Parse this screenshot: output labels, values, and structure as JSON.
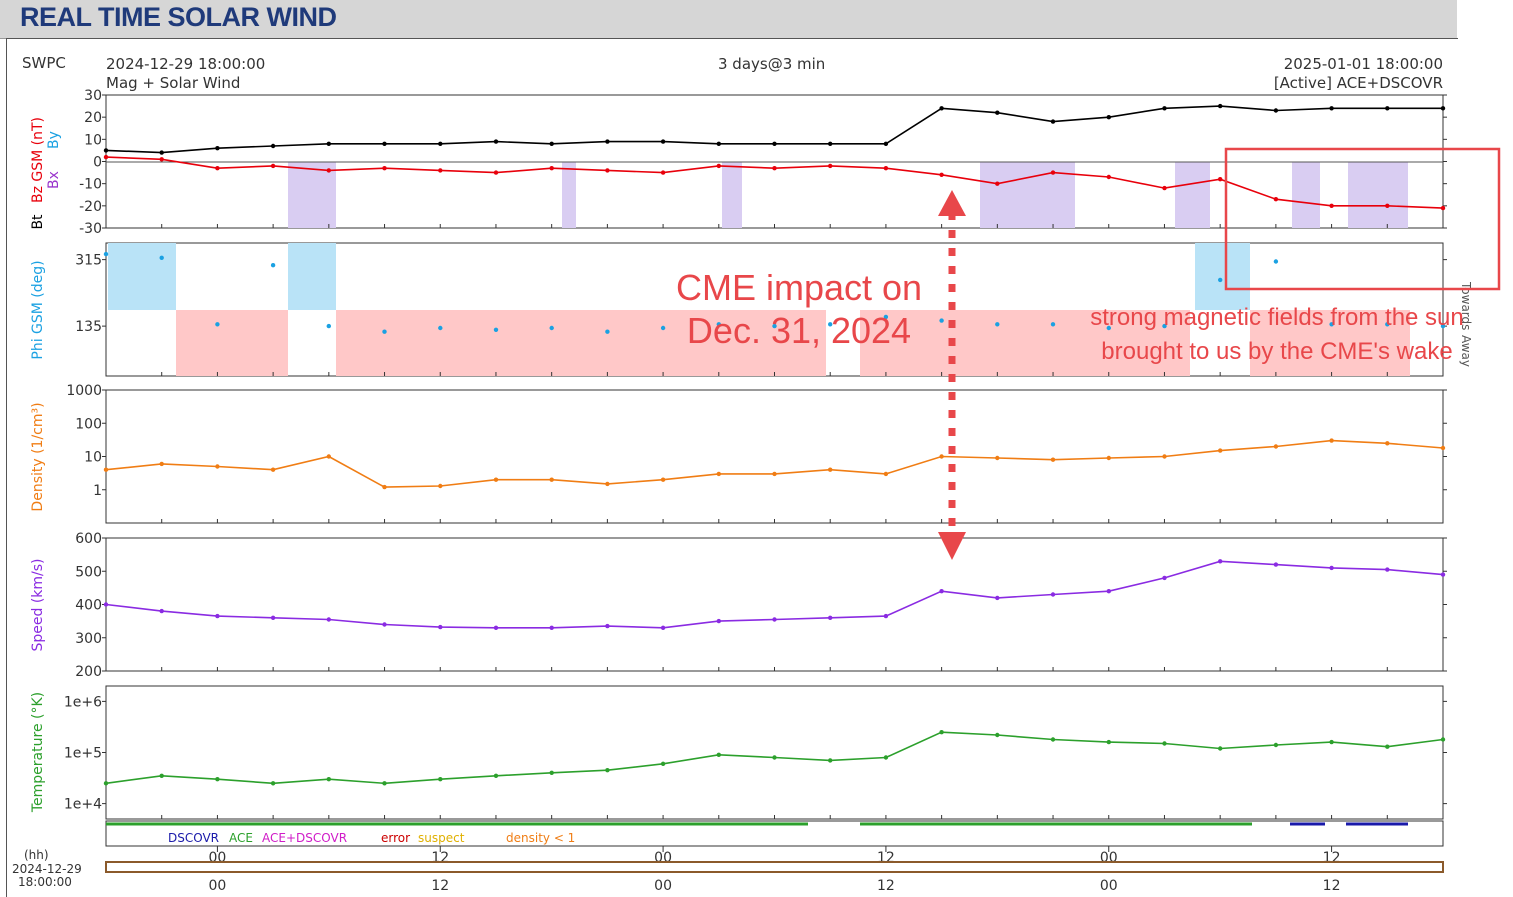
{
  "page": {
    "title": "REAL TIME SOLAR WIND"
  },
  "header": {
    "source": "SWPC",
    "start": "2024-12-29 18:00:00",
    "span": "3 days@3 min",
    "end": "2025-01-01 18:00:00",
    "product": "Mag + Solar Wind",
    "mode": "[Active] ACE+DSCOVR"
  },
  "legend": {
    "dscovr": "DSCOVR",
    "ace": "ACE",
    "ace_dscovr": "ACE+DSCOVR",
    "error": "error",
    "suspect": "suspect",
    "density": "density < 1"
  },
  "bottom": {
    "hh": "(hh)",
    "date": "2024-12-29",
    "time": "18:00:00"
  },
  "phi_side": {
    "away": "Away",
    "towards": "Towards"
  },
  "annotations": {
    "cme_line1": "CME impact on",
    "cme_line2": "Dec. 31, 2024",
    "field_line1": "strong magnetic fields from the sun",
    "field_line2": "brought to us by the CME's wake"
  },
  "colors": {
    "bt": "#000000",
    "bz": "#e8000b",
    "bx": "#9933cc",
    "by": "#1ba1e2",
    "phi": "#1ba1e2",
    "density": "#f07d14",
    "speed": "#8a2be2",
    "temperature": "#2ca02c",
    "annotation": "#e8474a",
    "away_shade": "#ffc8c8",
    "towards_shade": "#b9e3f7",
    "bz_neg_shade": "#d9cdf2"
  },
  "chart_data": [
    {
      "type": "line",
      "title": "",
      "ylabel": "Bz GSM (nT)",
      "ylabel_extra": [
        "Bt",
        "Bx",
        "By"
      ],
      "ylim": [
        -30,
        30
      ],
      "yticks": [
        "30",
        "20",
        "10",
        "0",
        "-10",
        "-20",
        "-30"
      ],
      "xlabel": "(hh)",
      "xticks": [
        "00",
        "12",
        "00",
        "12",
        "00",
        "12"
      ],
      "x_hours": [
        0,
        3,
        6,
        9,
        12,
        15,
        18,
        21,
        24,
        27,
        30,
        33,
        36,
        39,
        42,
        45,
        48,
        51,
        54,
        57,
        60,
        63,
        66,
        69,
        72
      ],
      "series": [
        {
          "name": "Bt",
          "values": [
            5,
            4,
            6,
            7,
            8,
            8,
            8,
            9,
            8,
            9,
            9,
            8,
            8,
            8,
            8,
            24,
            22,
            18,
            20,
            24,
            25,
            23,
            24,
            24,
            24
          ]
        },
        {
          "name": "Bz",
          "values": [
            2,
            1,
            -3,
            -2,
            -4,
            -3,
            -4,
            -5,
            -3,
            -4,
            -5,
            -2,
            -3,
            -2,
            -3,
            -6,
            -10,
            -5,
            -7,
            -12,
            -8,
            -17,
            -20,
            -20,
            -21
          ]
        }
      ]
    },
    {
      "type": "scatter",
      "title": "",
      "ylabel": "Phi GSM (deg)",
      "yticks": [
        "315",
        "135"
      ],
      "xticks": [
        "00",
        "12",
        "00",
        "12",
        "00",
        "12"
      ],
      "x_hours": [
        0,
        3,
        6,
        9,
        12,
        15,
        18,
        21,
        24,
        27,
        30,
        33,
        36,
        39,
        42,
        45,
        48,
        51,
        54,
        57,
        60,
        63,
        66,
        69,
        72
      ],
      "series": [
        {
          "name": "Phi",
          "values": [
            330,
            320,
            140,
            300,
            135,
            120,
            130,
            125,
            130,
            120,
            130,
            140,
            135,
            140,
            160,
            150,
            140,
            140,
            130,
            135,
            260,
            310,
            140,
            140,
            135
          ]
        }
      ]
    },
    {
      "type": "line",
      "title": "",
      "ylabel": "Density (1/cm³)",
      "yscale": "log",
      "ylim": [
        0.1,
        1000
      ],
      "yticks": [
        "1000",
        "100",
        "10",
        "1"
      ],
      "xticks": [
        "00",
        "12",
        "00",
        "12",
        "00",
        "12"
      ],
      "x_hours": [
        0,
        3,
        6,
        9,
        12,
        15,
        18,
        21,
        24,
        27,
        30,
        33,
        36,
        39,
        42,
        45,
        48,
        51,
        54,
        57,
        60,
        63,
        66,
        69,
        72
      ],
      "series": [
        {
          "name": "Density",
          "values": [
            4,
            6,
            5,
            4,
            10,
            1.2,
            1.3,
            2,
            2,
            1.5,
            2,
            3,
            3,
            4,
            3,
            10,
            9,
            8,
            9,
            10,
            15,
            20,
            30,
            25,
            18
          ]
        }
      ]
    },
    {
      "type": "line",
      "title": "",
      "ylabel": "Speed (km/s)",
      "ylim": [
        200,
        600
      ],
      "yticks": [
        "600",
        "500",
        "400",
        "300",
        "200"
      ],
      "xticks": [
        "00",
        "12",
        "00",
        "12",
        "00",
        "12"
      ],
      "x_hours": [
        0,
        3,
        6,
        9,
        12,
        15,
        18,
        21,
        24,
        27,
        30,
        33,
        36,
        39,
        42,
        45,
        48,
        51,
        54,
        57,
        60,
        63,
        66,
        69,
        72
      ],
      "series": [
        {
          "name": "Speed",
          "values": [
            400,
            380,
            365,
            360,
            355,
            340,
            332,
            330,
            330,
            335,
            330,
            350,
            355,
            360,
            365,
            440,
            420,
            430,
            440,
            480,
            530,
            520,
            510,
            505,
            490
          ]
        }
      ]
    },
    {
      "type": "line",
      "title": "",
      "ylabel": "Temperature (°K)",
      "yscale": "log",
      "ylim": [
        5000,
        2000000
      ],
      "yticks": [
        "1e+6",
        "1e+5",
        "1e+4"
      ],
      "xticks": [
        "00",
        "12",
        "00",
        "12",
        "00",
        "12"
      ],
      "x_hours": [
        0,
        3,
        6,
        9,
        12,
        15,
        18,
        21,
        24,
        27,
        30,
        33,
        36,
        39,
        42,
        45,
        48,
        51,
        54,
        57,
        60,
        63,
        66,
        69,
        72
      ],
      "series": [
        {
          "name": "Temperature",
          "values": [
            25000,
            35000,
            30000,
            25000,
            30000,
            25000,
            30000,
            35000,
            40000,
            45000,
            60000,
            90000,
            80000,
            70000,
            80000,
            250000,
            220000,
            180000,
            160000,
            150000,
            120000,
            140000,
            160000,
            130000,
            180000
          ]
        }
      ]
    }
  ]
}
